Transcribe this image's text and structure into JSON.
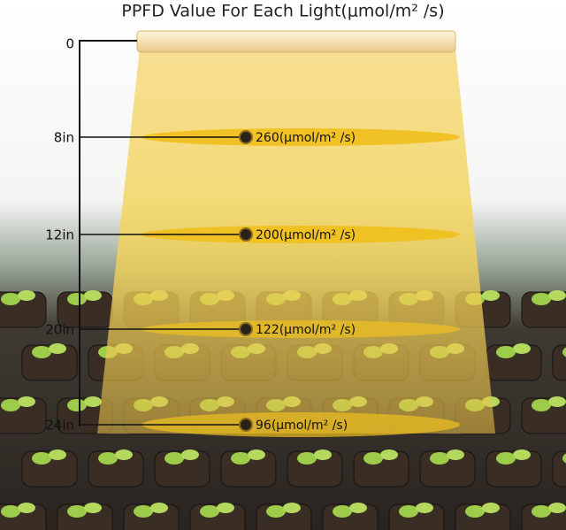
{
  "title": "PPFD Value For Each Light(μmol/m² /s)",
  "top_label": "0",
  "levels": [
    {
      "distance": "8in",
      "value": "260(μmol/m² /s)"
    },
    {
      "distance": "12in",
      "value": "200(μmol/m² /s)"
    },
    {
      "distance": "20in",
      "value": "122(μmol/m² /s)"
    },
    {
      "distance": "24in",
      "value": "96(μmol/m² /s)"
    }
  ]
}
